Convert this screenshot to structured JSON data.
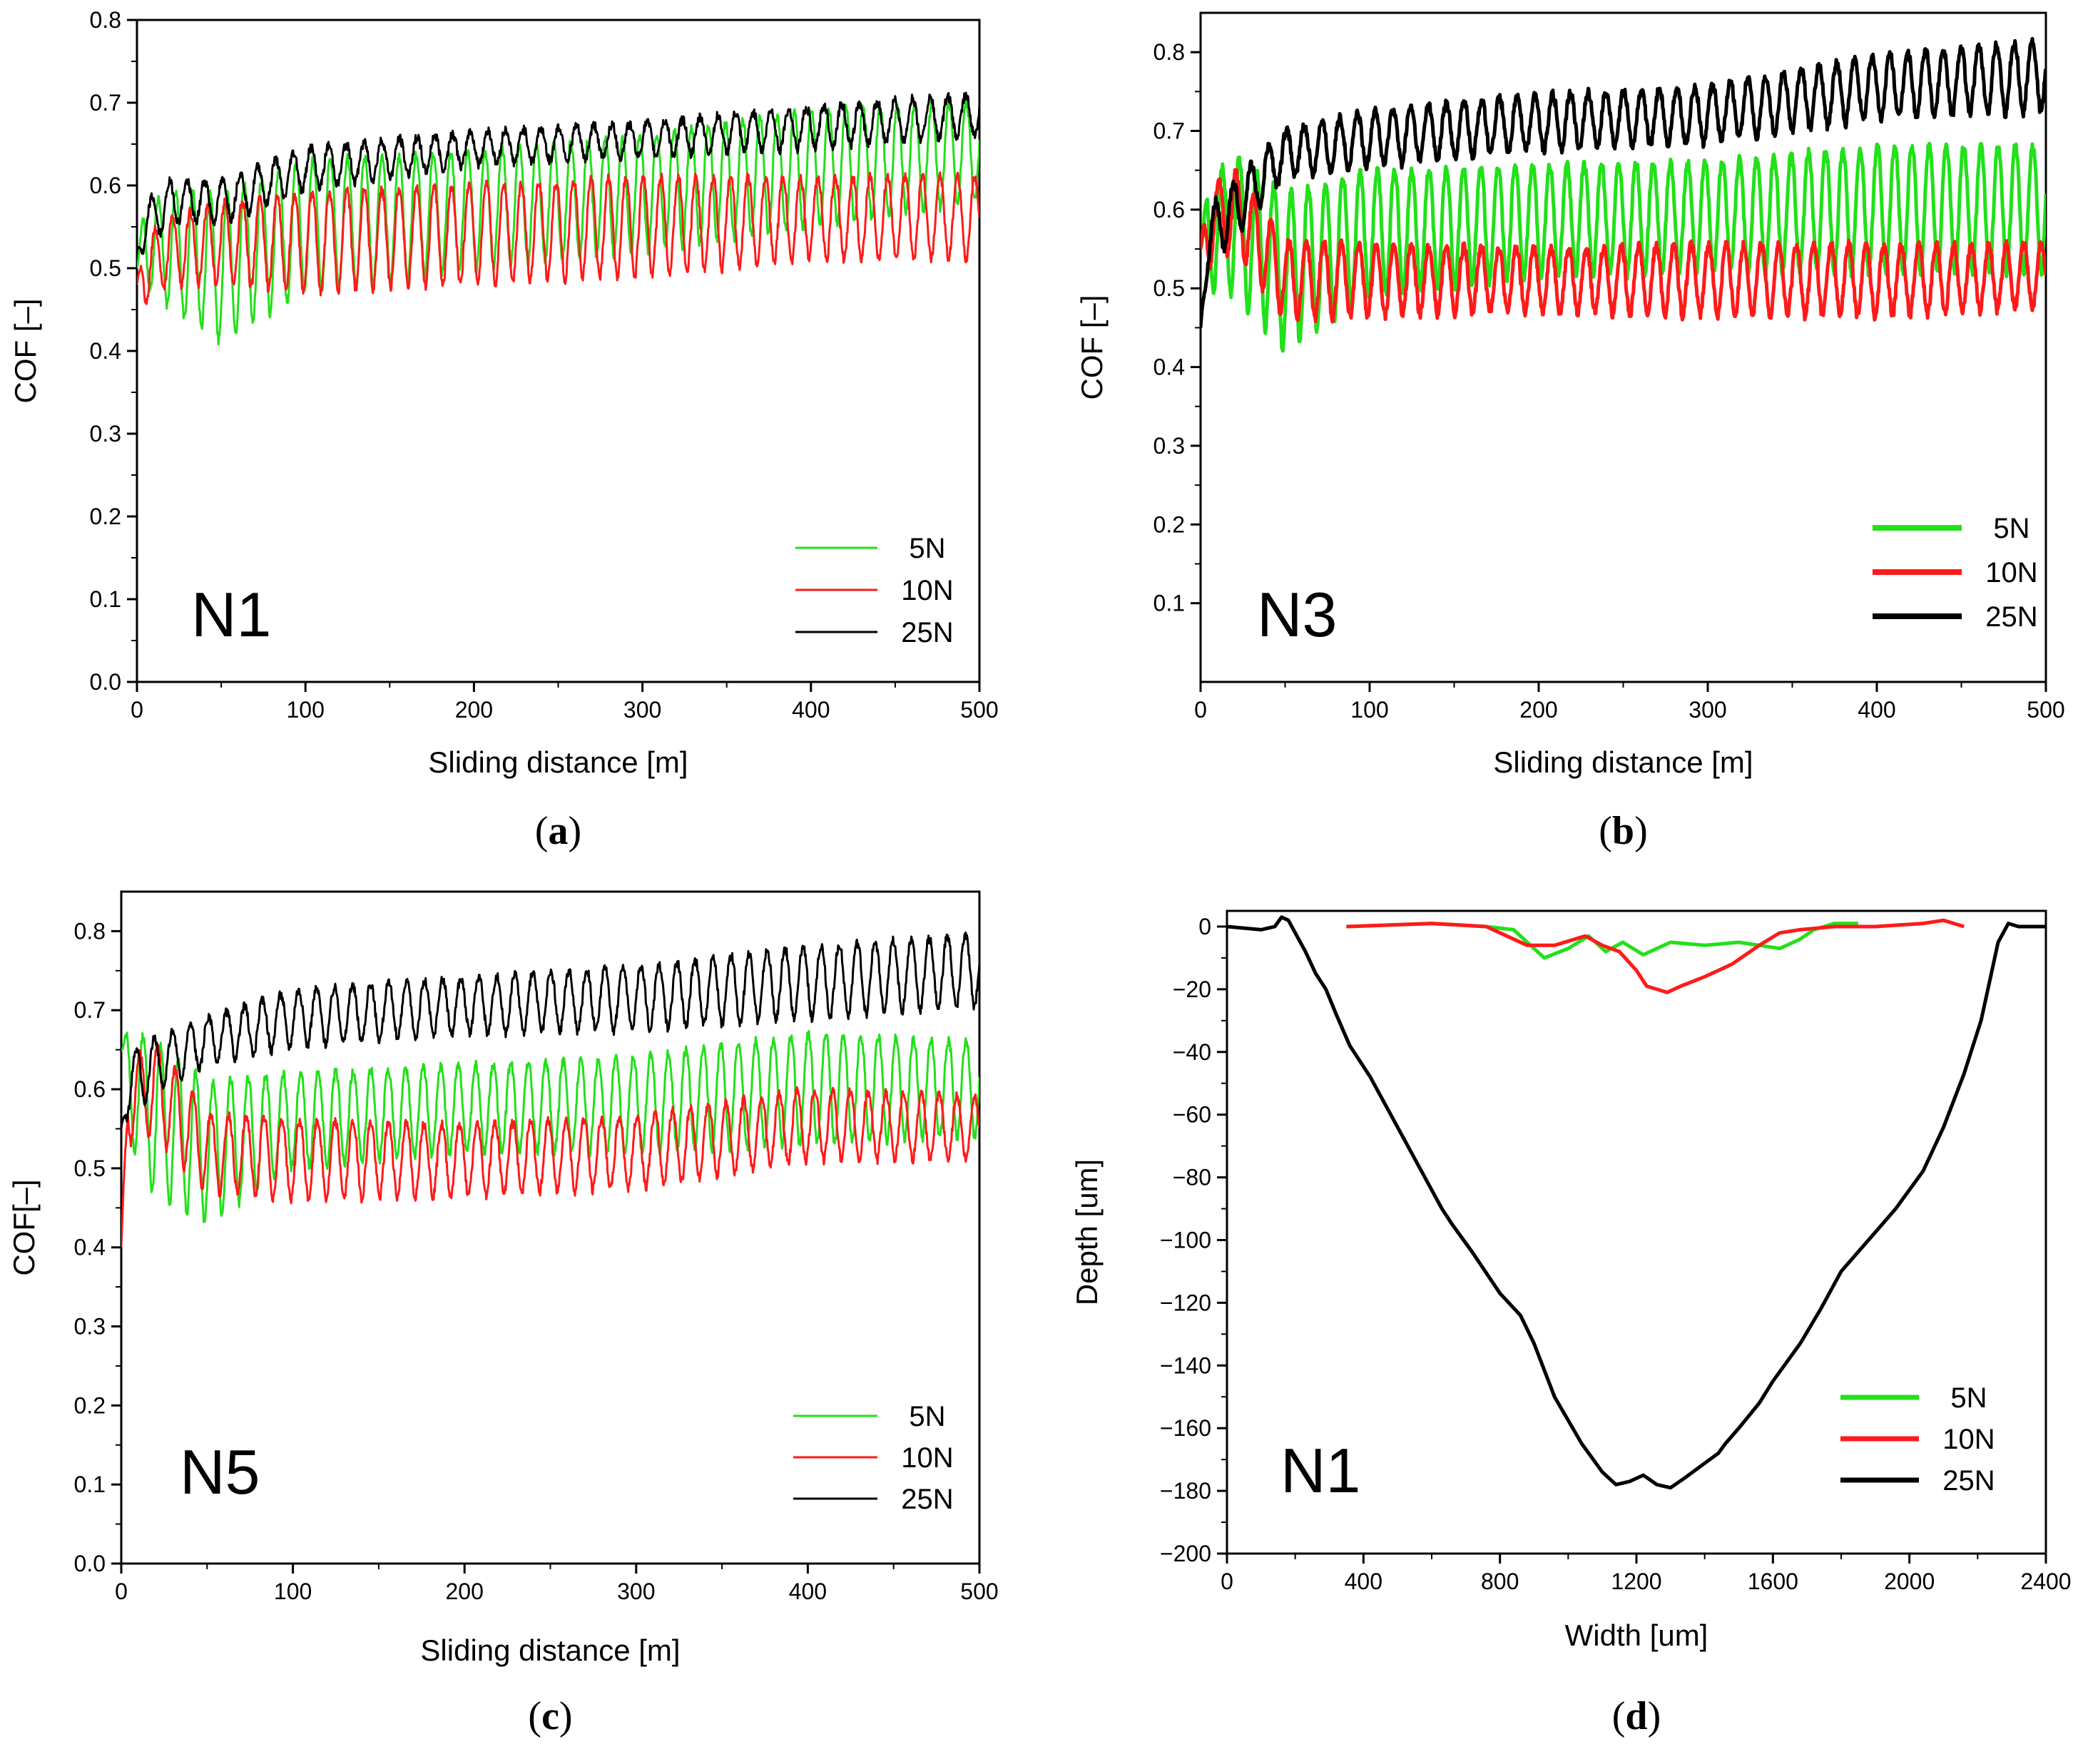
{
  "colors": {
    "green": "#22e01a",
    "red": "#ff1a1a",
    "black": "#000000"
  },
  "chart_data": [
    {
      "id": "a",
      "type": "line",
      "caption": {
        "open": "(",
        "letter": "a",
        "close": ")"
      },
      "annotation": "N1",
      "xlabel": "Sliding distance [m]",
      "ylabel": "COF [–]",
      "xlim": [
        0,
        500
      ],
      "ylim": [
        0,
        0.8
      ],
      "xticks": [
        0,
        100,
        200,
        300,
        400,
        500
      ],
      "yticks": [
        0.0,
        0.1,
        0.2,
        0.3,
        0.4,
        0.5,
        0.6,
        0.7,
        0.8
      ],
      "ytick_labels": [
        "0.0",
        "0.1",
        "0.2",
        "0.3",
        "0.4",
        "0.5",
        "0.6",
        "0.7",
        "0.8"
      ],
      "legend_position": "bottom-right",
      "series": [
        {
          "name": "5N",
          "color": "#22e01a",
          "start": 0.5,
          "x": [
            0,
            20,
            50,
            100,
            200,
            300,
            400,
            500
          ],
          "mean": [
            0.53,
            0.52,
            0.5,
            0.55,
            0.57,
            0.59,
            0.62,
            0.64
          ],
          "amp": [
            0.04,
            0.07,
            0.09,
            0.08,
            0.07,
            0.07,
            0.07,
            0.06
          ]
        },
        {
          "name": "10N",
          "color": "#ff1a1a",
          "start": 0.48,
          "x": [
            0,
            20,
            50,
            100,
            200,
            300,
            400,
            500
          ],
          "mean": [
            0.49,
            0.52,
            0.53,
            0.53,
            0.54,
            0.55,
            0.56,
            0.56
          ],
          "amp": [
            0.04,
            0.04,
            0.05,
            0.06,
            0.06,
            0.06,
            0.05,
            0.05
          ]
        },
        {
          "name": "25N",
          "color": "#000000",
          "start": 0.52,
          "x": [
            0,
            20,
            50,
            100,
            200,
            300,
            400,
            500
          ],
          "mean": [
            0.54,
            0.58,
            0.58,
            0.62,
            0.645,
            0.655,
            0.67,
            0.685
          ],
          "amp": [
            0.03,
            0.025,
            0.025,
            0.025,
            0.02,
            0.02,
            0.025,
            0.025
          ]
        }
      ]
    },
    {
      "id": "b",
      "type": "line",
      "caption": {
        "open": "(",
        "letter": "b",
        "close": ")"
      },
      "annotation": "N3",
      "xlabel": "Sliding distance [m]",
      "ylabel": "COF [–]",
      "xlim": [
        0,
        500
      ],
      "ylim": [
        0.0,
        0.85
      ],
      "xticks": [
        0,
        100,
        200,
        300,
        400,
        500
      ],
      "yticks": [
        0.1,
        0.2,
        0.3,
        0.4,
        0.5,
        0.6,
        0.7,
        0.8
      ],
      "ytick_labels": [
        "0.1",
        "0.2",
        "0.3",
        "0.4",
        "0.5",
        "0.6",
        "0.7",
        "0.8"
      ],
      "legend_position": "bottom-right",
      "series": [
        {
          "name": "5N",
          "color": "#22e01a",
          "start": 0.55,
          "x": [
            0,
            20,
            50,
            100,
            200,
            300,
            400,
            500
          ],
          "mean": [
            0.56,
            0.58,
            0.52,
            0.57,
            0.585,
            0.59,
            0.6,
            0.6
          ],
          "amp": [
            0.06,
            0.09,
            0.1,
            0.08,
            0.07,
            0.07,
            0.08,
            0.08
          ]
        },
        {
          "name": "10N",
          "color": "#ff1a1a",
          "start": 0.55,
          "x": [
            0,
            20,
            50,
            100,
            200,
            300,
            400,
            500
          ],
          "mean": [
            0.57,
            0.6,
            0.51,
            0.51,
            0.51,
            0.51,
            0.51,
            0.515
          ],
          "amp": [
            0.05,
            0.05,
            0.05,
            0.045,
            0.04,
            0.045,
            0.045,
            0.04
          ]
        },
        {
          "name": "25N",
          "color": "#000000",
          "start": 0.45,
          "x": [
            0,
            20,
            50,
            100,
            200,
            300,
            400,
            500
          ],
          "mean": [
            0.55,
            0.6,
            0.67,
            0.69,
            0.71,
            0.72,
            0.755,
            0.77
          ],
          "amp": [
            0.04,
            0.035,
            0.03,
            0.035,
            0.035,
            0.035,
            0.04,
            0.045
          ]
        }
      ]
    },
    {
      "id": "c",
      "type": "line",
      "caption": {
        "open": "(",
        "letter": "c",
        "close": ")"
      },
      "annotation": "N5",
      "xlabel": "Sliding distance [m]",
      "ylabel": "COF[–]",
      "xlim": [
        0,
        500
      ],
      "ylim": [
        0,
        0.85
      ],
      "xticks": [
        0,
        100,
        200,
        300,
        400,
        500
      ],
      "yticks": [
        0.0,
        0.1,
        0.2,
        0.3,
        0.4,
        0.5,
        0.6,
        0.7,
        0.8
      ],
      "ytick_labels": [
        "0.0",
        "0.1",
        "0.2",
        "0.3",
        "0.4",
        "0.5",
        "0.6",
        "0.7",
        "0.8"
      ],
      "legend_position": "bottom-right",
      "series": [
        {
          "name": "5N",
          "color": "#22e01a",
          "start": 0.65,
          "x": [
            0,
            20,
            50,
            100,
            200,
            300,
            400,
            500
          ],
          "mean": [
            0.62,
            0.56,
            0.52,
            0.56,
            0.575,
            0.58,
            0.6,
            0.6
          ],
          "amp": [
            0.06,
            0.1,
            0.09,
            0.06,
            0.055,
            0.06,
            0.07,
            0.06
          ]
        },
        {
          "name": "10N",
          "color": "#ff1a1a",
          "start": 0.4,
          "x": [
            0,
            20,
            50,
            100,
            200,
            300,
            400,
            500
          ],
          "mean": [
            0.58,
            0.6,
            0.52,
            0.51,
            0.51,
            0.52,
            0.555,
            0.55
          ],
          "amp": [
            0.05,
            0.06,
            0.05,
            0.05,
            0.045,
            0.045,
            0.045,
            0.04
          ]
        },
        {
          "name": "25N",
          "color": "#000000",
          "start": 0.55,
          "x": [
            0,
            20,
            50,
            100,
            200,
            300,
            400,
            500
          ],
          "mean": [
            0.6,
            0.63,
            0.66,
            0.69,
            0.705,
            0.715,
            0.735,
            0.75
          ],
          "amp": [
            0.04,
            0.035,
            0.03,
            0.035,
            0.035,
            0.04,
            0.045,
            0.045
          ]
        }
      ]
    },
    {
      "id": "d",
      "type": "line",
      "caption": {
        "open": "(",
        "letter": "d",
        "close": ")"
      },
      "annotation": "N1",
      "xlabel": "Width [um]",
      "ylabel": "Depth [um]",
      "xlim": [
        0,
        2400
      ],
      "ylim": [
        -200,
        5
      ],
      "xticks": [
        0,
        400,
        800,
        1200,
        1600,
        2000,
        2400
      ],
      "yticks": [
        0,
        -20,
        -40,
        -60,
        -80,
        -100,
        -120,
        -140,
        -160,
        -180,
        -200
      ],
      "ytick_labels": [
        "0",
        "−20",
        "−40",
        "−60",
        "−80",
        "−100",
        "−120",
        "−140",
        "−160",
        "−180",
        "−200"
      ],
      "legend_position": "bottom-right",
      "series": [
        {
          "name": "5N",
          "color": "#22e01a",
          "x": [
            350,
            600,
            760,
            840,
            880,
            930,
            1000,
            1060,
            1110,
            1160,
            1220,
            1300,
            1400,
            1500,
            1560,
            1620,
            1680,
            1720,
            1780,
            1850
          ],
          "y": [
            0,
            1,
            0,
            -1,
            -5,
            -10,
            -7,
            -3,
            -8,
            -5,
            -9,
            -5,
            -6,
            -5,
            -6,
            -7,
            -4,
            -1,
            1,
            1
          ]
        },
        {
          "name": "10N",
          "color": "#ff1a1a",
          "x": [
            350,
            600,
            760,
            800,
            880,
            960,
            1050,
            1100,
            1150,
            1200,
            1230,
            1260,
            1290,
            1330,
            1400,
            1480,
            1560,
            1620,
            1680,
            1780,
            1900,
            2040,
            2100,
            2160
          ],
          "y": [
            0,
            1,
            0,
            -2,
            -6,
            -6,
            -3,
            -6,
            -8,
            -14,
            -19,
            -20,
            -21,
            -19,
            -16,
            -12,
            -6,
            -2,
            -1,
            0,
            0,
            1,
            2,
            0
          ]
        },
        {
          "name": "25N",
          "color": "#000000",
          "x": [
            0,
            100,
            140,
            160,
            180,
            200,
            230,
            260,
            290,
            320,
            360,
            420,
            500,
            580,
            630,
            660,
            720,
            800,
            860,
            900,
            960,
            1040,
            1100,
            1140,
            1180,
            1220,
            1260,
            1300,
            1340,
            1390,
            1440,
            1460,
            1500,
            1560,
            1600,
            1680,
            1740,
            1800,
            1880,
            1960,
            2040,
            2100,
            2160,
            2210,
            2240,
            2260,
            2290,
            2320,
            2340,
            2400
          ],
          "y": [
            0,
            -1,
            0,
            3,
            2,
            -2,
            -8,
            -15,
            -20,
            -28,
            -38,
            -48,
            -64,
            -80,
            -90,
            -95,
            -104,
            -117,
            -124,
            -133,
            -150,
            -165,
            -174,
            -178,
            -177,
            -175,
            -178,
            -179,
            -176,
            -172,
            -168,
            -165,
            -160,
            -152,
            -145,
            -133,
            -122,
            -110,
            -100,
            -90,
            -78,
            -64,
            -47,
            -30,
            -15,
            -5,
            1,
            0,
            0,
            0
          ]
        }
      ]
    }
  ]
}
